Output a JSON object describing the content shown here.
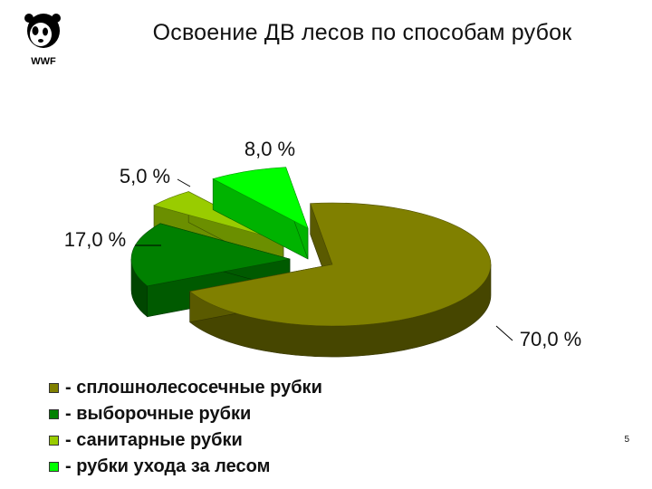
{
  "slide": {
    "title": "Освоение ДВ лесов по способам рубок",
    "logo_text": "WWF",
    "page_number": "5"
  },
  "chart_data": {
    "type": "pie",
    "style": "3d-exploded",
    "categories": [
      "- сплошнолесосечные рубки",
      "- выборочные рубки",
      "- санитарные рубки",
      "- рубки ухода за лесом"
    ],
    "values": [
      70.0,
      17.0,
      5.0,
      8.0
    ],
    "data_labels": [
      "70,0 %",
      "17,0 %",
      "5,0 %",
      "8,0 %"
    ],
    "colors": [
      "#808000",
      "#008000",
      "#99cc00",
      "#00ff00"
    ],
    "legend_position": "bottom-left"
  }
}
